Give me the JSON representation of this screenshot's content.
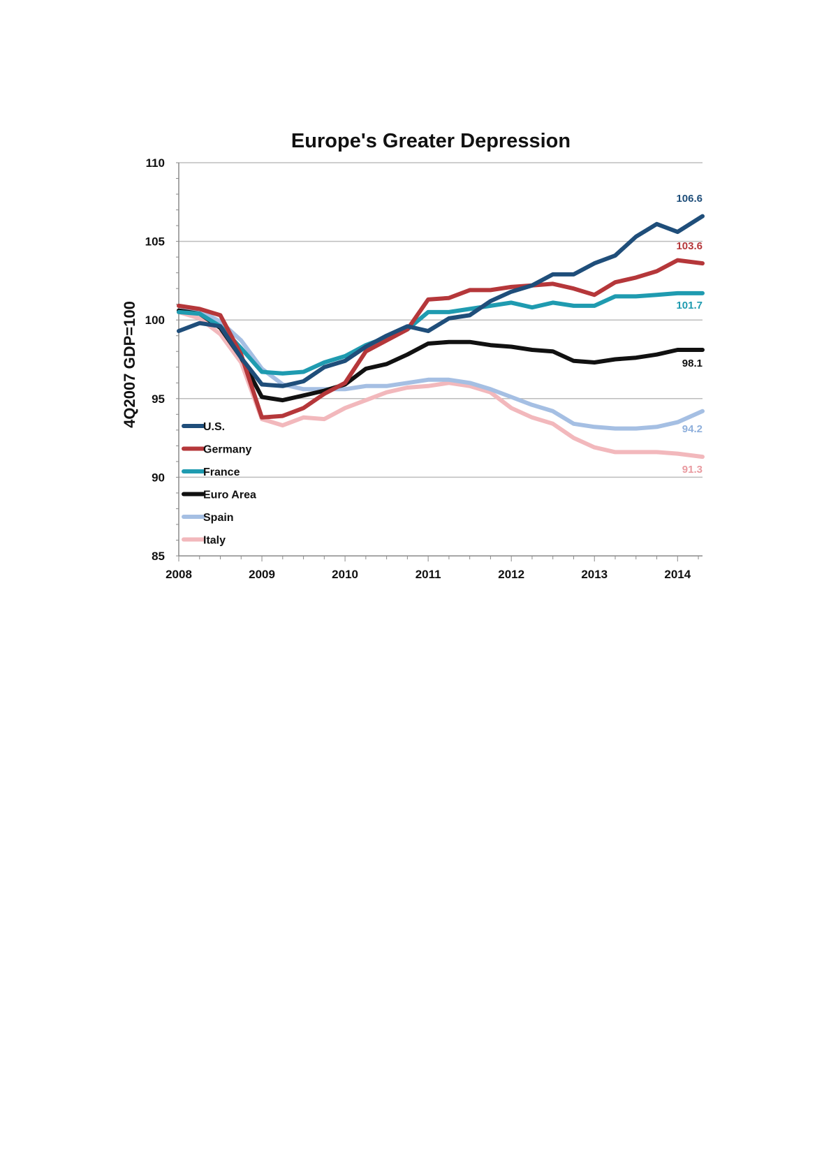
{
  "chart_data": {
    "type": "line",
    "title": "Europe's Greater Depression",
    "xlabel": "",
    "ylabel": "4Q2007 GDP=100",
    "ylim": [
      85,
      110
    ],
    "yticks": [
      "85",
      "90",
      "95",
      "100",
      "105",
      "110"
    ],
    "xlim": [
      2008,
      2014.3
    ],
    "xticks": [
      "2008",
      "2009",
      "2010",
      "2011",
      "2012",
      "2013",
      "2014"
    ],
    "grid": "horizontal",
    "legend_position": "bottom-left",
    "x": [
      2008.0,
      2008.25,
      2008.5,
      2008.75,
      2009.0,
      2009.25,
      2009.5,
      2009.75,
      2010.0,
      2010.25,
      2010.5,
      2010.75,
      2011.0,
      2011.25,
      2011.5,
      2011.75,
      2012.0,
      2012.25,
      2012.5,
      2012.75,
      2013.0,
      2013.25,
      2013.5,
      2013.75,
      2014.0,
      2014.3
    ],
    "series": [
      {
        "name": "U.S.",
        "color": "#1f4e7a",
        "end_label": "106.6",
        "values": [
          99.3,
          99.8,
          99.6,
          97.6,
          95.9,
          95.8,
          96.1,
          97.0,
          97.4,
          98.3,
          99.0,
          99.6,
          99.3,
          100.1,
          100.3,
          101.2,
          101.8,
          102.2,
          102.9,
          102.9,
          103.6,
          104.1,
          105.3,
          106.1,
          105.6,
          106.6
        ]
      },
      {
        "name": "Germany",
        "color": "#b5373a",
        "end_label": "103.6",
        "values": [
          100.9,
          100.7,
          100.3,
          97.8,
          93.8,
          93.9,
          94.4,
          95.3,
          96.0,
          98.0,
          98.7,
          99.4,
          101.3,
          101.4,
          101.9,
          101.9,
          102.1,
          102.2,
          102.3,
          102.0,
          101.6,
          102.4,
          102.7,
          103.1,
          103.8,
          103.6
        ]
      },
      {
        "name": "France",
        "color": "#1f9bb0",
        "end_label": "101.7",
        "values": [
          100.5,
          100.4,
          99.6,
          98.2,
          96.7,
          96.6,
          96.7,
          97.3,
          97.7,
          98.4,
          98.9,
          99.4,
          100.5,
          100.5,
          100.7,
          100.9,
          101.1,
          100.8,
          101.1,
          100.9,
          100.9,
          101.5,
          101.5,
          101.6,
          101.7,
          101.7
        ]
      },
      {
        "name": "Euro Area",
        "color": "#111111",
        "end_label": "98.1",
        "values": [
          100.6,
          100.4,
          99.5,
          97.6,
          95.1,
          94.9,
          95.2,
          95.5,
          95.9,
          96.9,
          97.2,
          97.8,
          98.5,
          98.6,
          98.6,
          98.4,
          98.3,
          98.1,
          98.0,
          97.4,
          97.3,
          97.5,
          97.6,
          97.8,
          98.1,
          98.1
        ]
      },
      {
        "name": "Spain",
        "color": "#a5bfe3",
        "end_label": "94.2",
        "values": [
          100.6,
          100.6,
          99.9,
          98.7,
          96.9,
          95.9,
          95.6,
          95.6,
          95.6,
          95.8,
          95.8,
          96.0,
          96.2,
          96.2,
          96.0,
          95.6,
          95.1,
          94.6,
          94.2,
          93.4,
          93.2,
          93.1,
          93.1,
          93.2,
          93.5,
          94.2
        ]
      },
      {
        "name": "Italy",
        "color": "#f2b8bc",
        "end_label": "91.3",
        "values": [
          100.5,
          100.1,
          99.1,
          97.3,
          93.7,
          93.3,
          93.8,
          93.7,
          94.4,
          94.9,
          95.4,
          95.7,
          95.8,
          96.0,
          95.8,
          95.4,
          94.4,
          93.8,
          93.4,
          92.5,
          91.9,
          91.6,
          91.6,
          91.6,
          91.5,
          91.3
        ]
      }
    ]
  }
}
